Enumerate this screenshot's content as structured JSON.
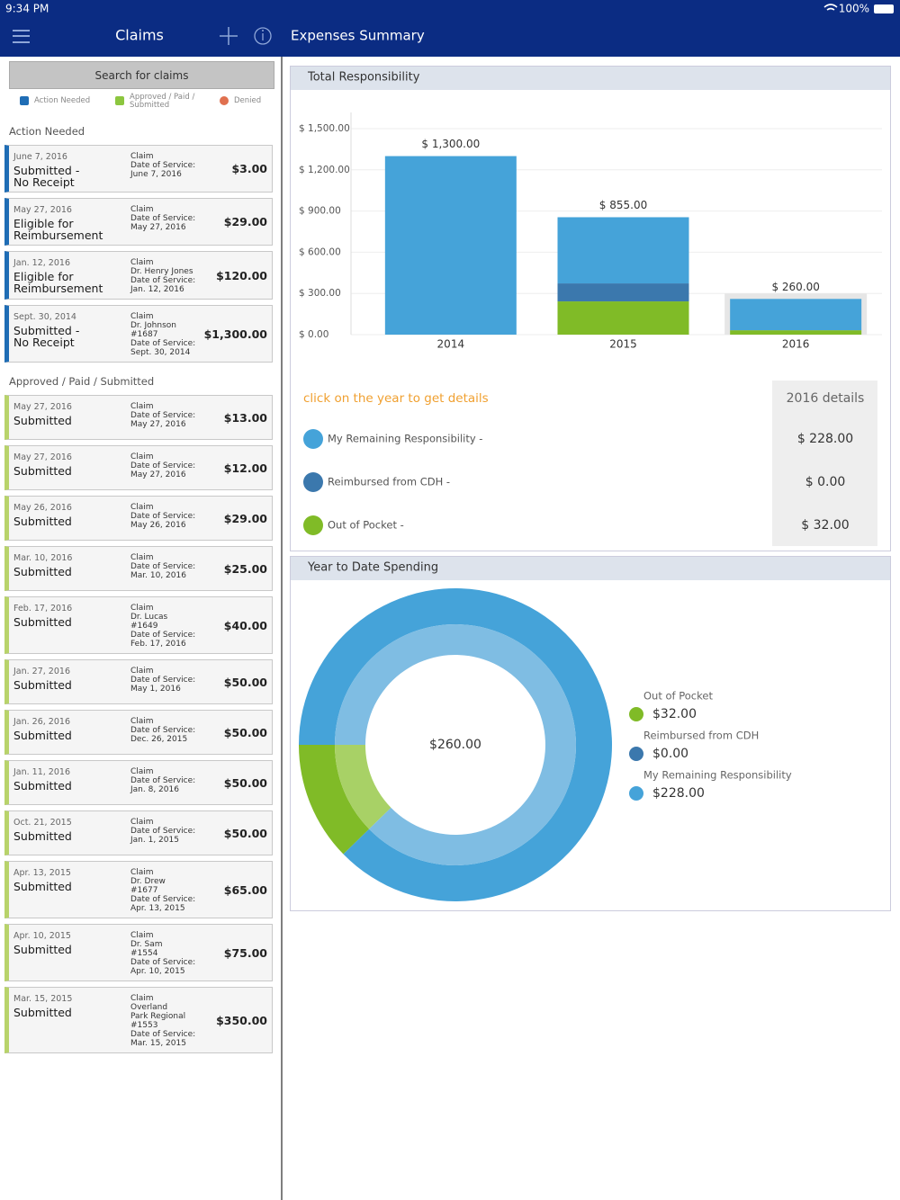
{
  "status_bar": {
    "time": "9:34 PM",
    "battery": "100%"
  },
  "claims_panel": {
    "title": "Claims",
    "search": "Search for claims",
    "legend": [
      {
        "label": "Action Needed",
        "color": "#1f6db5"
      },
      {
        "label": "Approved / Paid / Submitted",
        "color": "#8cc63f"
      },
      {
        "label": "Denied",
        "color": "#e0704f"
      }
    ],
    "sections": [
      {
        "title": "Action Needed",
        "color": "#1f6db5",
        "claims": [
          {
            "date": "June 7, 2016",
            "status": [
              "Submitted -",
              "No Receipt"
            ],
            "details": [
              "Claim",
              "Date of Service:",
              "June 7, 2016"
            ],
            "amount": "$3.00"
          },
          {
            "date": "May 27, 2016",
            "status": [
              "Eligible for",
              "Reimbursement"
            ],
            "details": [
              "Claim",
              "Date of Service:",
              "May 27, 2016"
            ],
            "amount": "$29.00"
          },
          {
            "date": "Jan. 12, 2016",
            "status": [
              "Eligible for",
              "Reimbursement"
            ],
            "details": [
              "Claim",
              "Dr. Henry Jones",
              "Date of Service:",
              "Jan. 12, 2016"
            ],
            "amount": "$120.00"
          },
          {
            "date": "Sept. 30, 2014",
            "status": [
              "Submitted -",
              "No Receipt"
            ],
            "details": [
              "Claim",
              "Dr. Johnson",
              "#1687",
              "Date of Service:",
              "Sept. 30, 2014"
            ],
            "amount": "$1,300.00"
          }
        ]
      },
      {
        "title": "Approved / Paid / Submitted",
        "color": "#b8d36a",
        "claims": [
          {
            "date": "May 27, 2016",
            "status": [
              "Submitted"
            ],
            "details": [
              "Claim",
              "Date of Service:",
              "May 27, 2016"
            ],
            "amount": "$13.00"
          },
          {
            "date": "May 27, 2016",
            "status": [
              "Submitted"
            ],
            "details": [
              "Claim",
              "Date of Service:",
              "May 27, 2016"
            ],
            "amount": "$12.00"
          },
          {
            "date": "May 26, 2016",
            "status": [
              "Submitted"
            ],
            "details": [
              "Claim",
              "Date of Service:",
              "May 26, 2016"
            ],
            "amount": "$29.00"
          },
          {
            "date": "Mar. 10, 2016",
            "status": [
              "Submitted"
            ],
            "details": [
              "Claim",
              "Date of Service:",
              "Mar. 10, 2016"
            ],
            "amount": "$25.00"
          },
          {
            "date": "Feb. 17, 2016",
            "status": [
              "Submitted"
            ],
            "details": [
              "Claim",
              "Dr. Lucas",
              "#1649",
              "Date of Service:",
              "Feb. 17, 2016"
            ],
            "amount": "$40.00"
          },
          {
            "date": "Jan. 27, 2016",
            "status": [
              "Submitted"
            ],
            "details": [
              "Claim",
              "Date of Service:",
              "May 1, 2016"
            ],
            "amount": "$50.00"
          },
          {
            "date": "Jan. 26, 2016",
            "status": [
              "Submitted"
            ],
            "details": [
              "Claim",
              "Date of Service:",
              "Dec. 26, 2015"
            ],
            "amount": "$50.00"
          },
          {
            "date": "Jan. 11, 2016",
            "status": [
              "Submitted"
            ],
            "details": [
              "Claim",
              "Date of Service:",
              "Jan. 8, 2016"
            ],
            "amount": "$50.00"
          },
          {
            "date": "Oct. 21, 2015",
            "status": [
              "Submitted"
            ],
            "details": [
              "Claim",
              "Date of Service:",
              "Jan. 1, 2015"
            ],
            "amount": "$50.00"
          },
          {
            "date": "Apr. 13, 2015",
            "status": [
              "Submitted"
            ],
            "details": [
              "Claim",
              "Dr. Drew",
              "#1677",
              "Date of Service:",
              "Apr. 13, 2015"
            ],
            "amount": "$65.00"
          },
          {
            "date": "Apr. 10, 2015",
            "status": [
              "Submitted"
            ],
            "details": [
              "Claim",
              "Dr. Sam",
              "#1554",
              "Date of Service:",
              "Apr. 10, 2015"
            ],
            "amount": "$75.00"
          },
          {
            "date": "Mar. 15, 2015",
            "status": [
              "Submitted"
            ],
            "details": [
              "Claim",
              "Overland",
              "Park Regional",
              "#1553",
              "Date of Service:",
              "Mar. 15, 2015"
            ],
            "amount": "$350.00"
          }
        ]
      }
    ]
  },
  "summary_panel": {
    "title": "Expenses Summary",
    "total_responsibility": {
      "title": "Total Responsibility",
      "chart": {
        "type": "bar",
        "stacked": true,
        "categories": [
          "2014",
          "2015",
          "2016"
        ],
        "series": [
          {
            "name": "Out of Pocket",
            "color": "#80bb27",
            "values": [
              0,
              242,
              32
            ]
          },
          {
            "name": "Reimbursed from CDH",
            "color": "#3b78ad",
            "values": [
              0,
              131,
              0
            ]
          },
          {
            "name": "My Remaining Responsibility",
            "color": "#45a3d9",
            "values": [
              1300,
              482,
              228
            ]
          }
        ],
        "total_labels": [
          "$ 1,300.00",
          "$ 855.00",
          "$ 260.00"
        ],
        "ylim": [
          0,
          1500
        ],
        "yticks": [
          {
            "value": 0,
            "label": "$ 0.00"
          },
          {
            "value": 300,
            "label": "$ 300.00"
          },
          {
            "value": 600,
            "label": "$ 600.00"
          },
          {
            "value": 900,
            "label": "$ 900.00"
          },
          {
            "value": 1200,
            "label": "$ 1,200.00"
          },
          {
            "value": 1500,
            "label": "$ 1,500.00"
          }
        ],
        "grid": true,
        "selected": 2
      },
      "hint": "click on the year to get details",
      "details_title": "2016 details",
      "details": [
        {
          "label": "My Remaining Responsibility -",
          "amount": "$ 228.00",
          "color": "#45a3d9"
        },
        {
          "label": "Reimbursed from CDH -",
          "amount": "$ 0.00",
          "color": "#3b78ad"
        },
        {
          "label": "Out of Pocket -",
          "amount": "$ 32.00",
          "color": "#80bb27"
        }
      ]
    },
    "year_to_date": {
      "title": "Year to Date Spending",
      "chart": {
        "type": "donut",
        "center_label": "$260.00",
        "series": [
          {
            "name": "Out of Pocket",
            "value": 32,
            "value_label": "$32.00",
            "color": "#80bb27",
            "inner_color": "#a8d166"
          },
          {
            "name": "Reimbursed from CDH",
            "value": 0,
            "value_label": "$0.00",
            "color": "#3b78ad",
            "inner_color": "#6a9cc8"
          },
          {
            "name": "My Remaining Responsibility",
            "value": 228,
            "value_label": "$228.00",
            "color": "#45a3d9",
            "inner_color": "#7fbde3"
          }
        ]
      }
    }
  }
}
